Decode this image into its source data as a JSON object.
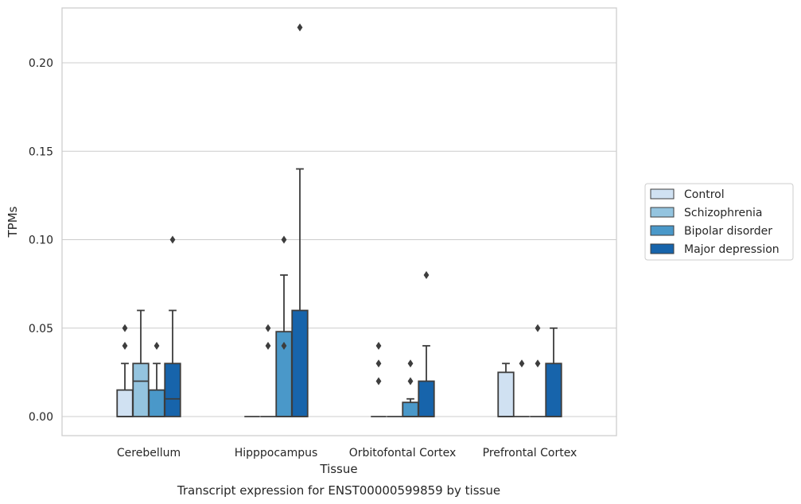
{
  "chart_data": {
    "type": "box",
    "xlabel": "Tissue",
    "ylabel": "TPMs",
    "caption": "Transcript expression for ENST00000599859 by tissue",
    "categories": [
      "Cerebellum",
      "Hipppocampus",
      "Orbitofontal Cortex",
      "Prefrontal Cortex"
    ],
    "ylim": [
      -0.011,
      0.232
    ],
    "yticks": [
      0.0,
      0.05,
      0.1,
      0.15,
      0.2
    ],
    "ytick_labels": [
      "0.00",
      "0.05",
      "0.10",
      "0.15",
      "0.20"
    ],
    "grid": "horizontal",
    "legend_position": "right",
    "series": [
      {
        "name": "Control",
        "color": "#d0e1f2",
        "boxes": [
          {
            "whislo": 0.0,
            "q1": 0.0,
            "med": 0.0,
            "q3": 0.015,
            "whishi": 0.03,
            "fliers": [
              0.04,
              0.05
            ]
          },
          {
            "whislo": 0.0,
            "q1": 0.0,
            "med": 0.0,
            "q3": 0.0,
            "whishi": 0.0,
            "fliers": []
          },
          {
            "whislo": 0.0,
            "q1": 0.0,
            "med": 0.0,
            "q3": 0.0,
            "whishi": 0.0,
            "fliers": [
              0.02,
              0.03,
              0.04
            ]
          },
          {
            "whislo": 0.0,
            "q1": 0.0,
            "med": 0.0,
            "q3": 0.025,
            "whishi": 0.03,
            "fliers": []
          }
        ]
      },
      {
        "name": "Schizophrenia",
        "color": "#94c4df",
        "boxes": [
          {
            "whislo": 0.0,
            "q1": 0.0,
            "med": 0.02,
            "q3": 0.03,
            "whishi": 0.06,
            "fliers": []
          },
          {
            "whislo": 0.0,
            "q1": 0.0,
            "med": 0.0,
            "q3": 0.0,
            "whishi": 0.0,
            "fliers": [
              0.04,
              0.05
            ]
          },
          {
            "whislo": 0.0,
            "q1": 0.0,
            "med": 0.0,
            "q3": 0.0,
            "whishi": 0.0,
            "fliers": []
          },
          {
            "whislo": 0.0,
            "q1": 0.0,
            "med": 0.0,
            "q3": 0.0,
            "whishi": 0.0,
            "fliers": [
              0.03
            ]
          }
        ]
      },
      {
        "name": "Bipolar disorder",
        "color": "#4a98c9",
        "boxes": [
          {
            "whislo": 0.0,
            "q1": 0.0,
            "med": 0.0,
            "q3": 0.015,
            "whishi": 0.03,
            "fliers": [
              0.04
            ]
          },
          {
            "whislo": 0.0,
            "q1": 0.0,
            "med": 0.0,
            "q3": 0.048,
            "whishi": 0.08,
            "fliers": [
              0.04,
              0.1
            ]
          },
          {
            "whislo": 0.0,
            "q1": 0.0,
            "med": 0.0,
            "q3": 0.008,
            "whishi": 0.01,
            "fliers": [
              0.02,
              0.03
            ]
          },
          {
            "whislo": 0.0,
            "q1": 0.0,
            "med": 0.0,
            "q3": 0.0,
            "whishi": 0.0,
            "fliers": [
              0.03,
              0.05
            ]
          }
        ]
      },
      {
        "name": "Major depression",
        "color": "#1764ab",
        "boxes": [
          {
            "whislo": 0.0,
            "q1": 0.0,
            "med": 0.01,
            "q3": 0.03,
            "whishi": 0.06,
            "fliers": [
              0.1
            ]
          },
          {
            "whislo": 0.0,
            "q1": 0.0,
            "med": 0.0,
            "q3": 0.06,
            "whishi": 0.14,
            "fliers": [
              0.22
            ]
          },
          {
            "whislo": 0.0,
            "q1": 0.0,
            "med": 0.0,
            "q3": 0.02,
            "whishi": 0.04,
            "fliers": [
              0.08
            ]
          },
          {
            "whislo": 0.0,
            "q1": 0.0,
            "med": 0.0,
            "q3": 0.03,
            "whishi": 0.05,
            "fliers": []
          }
        ]
      }
    ]
  }
}
